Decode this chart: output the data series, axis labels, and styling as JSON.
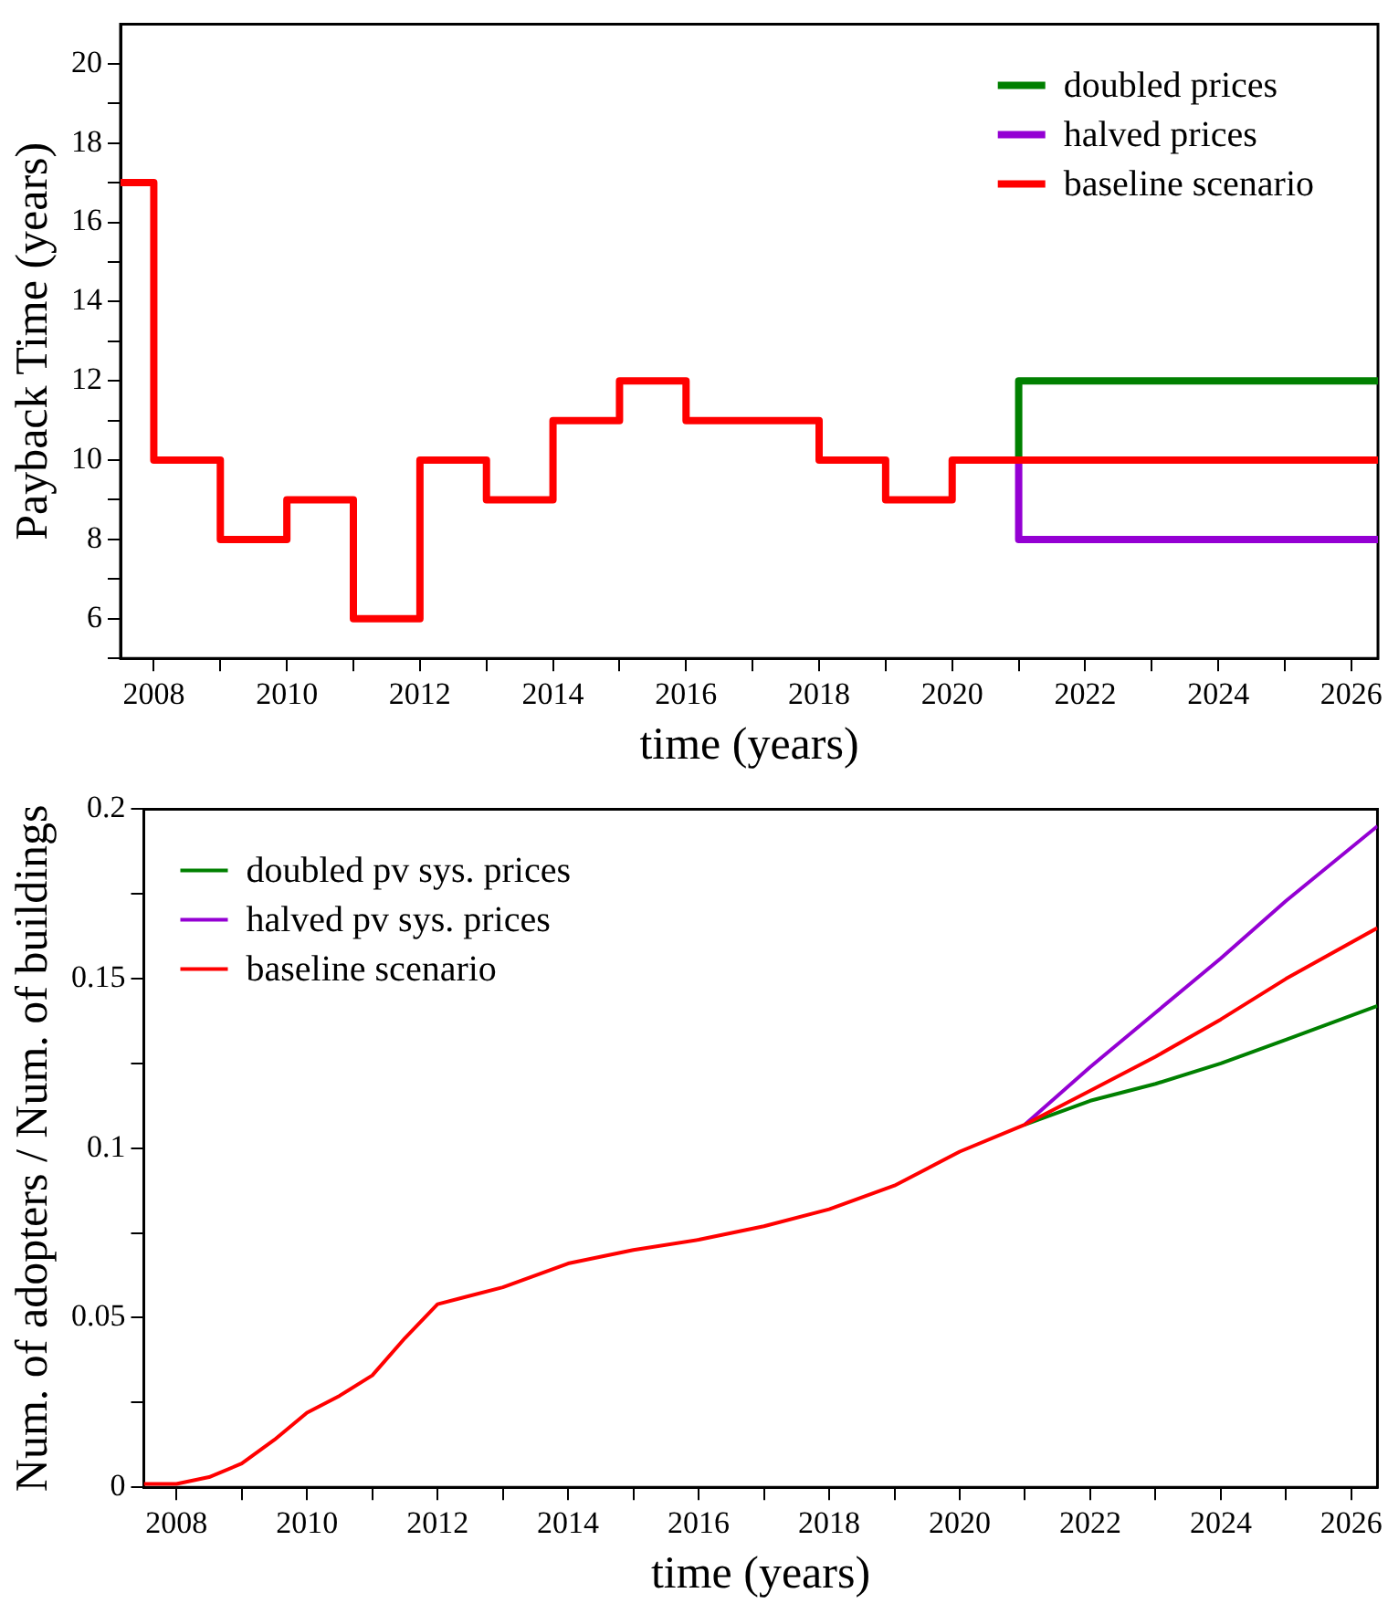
{
  "chart_data": [
    {
      "type": "step",
      "xlabel": "time (years)",
      "ylabel": "Payback Time (years)",
      "legend": "top right",
      "grid": false,
      "marker": "none",
      "xlim": [
        2007.5,
        2026.4
      ],
      "ylim": [
        5,
        21
      ],
      "xticks": [
        2008,
        {
          "value": 2009,
          "label": null
        },
        2010,
        {
          "value": 2011,
          "label": null
        },
        2012,
        {
          "value": 2013,
          "label": null
        },
        2014,
        {
          "value": 2015,
          "label": null
        },
        2016,
        {
          "value": 2017,
          "label": null
        },
        2018,
        {
          "value": 2019,
          "label": null
        },
        2020,
        {
          "value": 2021,
          "label": null
        },
        2022,
        {
          "value": 2023,
          "label": null
        },
        2024,
        {
          "value": 2025,
          "label": null
        },
        2026
      ],
      "yticks": [
        {
          "value": 5,
          "label": null
        },
        6,
        {
          "value": 7,
          "label": null
        },
        8,
        {
          "value": 9,
          "label": null
        },
        10,
        {
          "value": 11,
          "label": null
        },
        12,
        {
          "value": 13,
          "label": null
        },
        14,
        {
          "value": 15,
          "label": null
        },
        16,
        {
          "value": 17,
          "label": null
        },
        18,
        {
          "value": 19,
          "label": null
        },
        20
      ],
      "x": [
        2007.5,
        2008,
        2009,
        2010,
        2011,
        2012,
        2013,
        2014,
        2015,
        2016,
        2017,
        2018,
        2019,
        2020,
        2021,
        2026.4
      ],
      "series": [
        {
          "name": "doubled prices",
          "color": "#008000",
          "x": [
            2021,
            2021,
            2026.4
          ],
          "values": [
            10,
            12,
            12
          ]
        },
        {
          "name": "halved prices",
          "color": "#9400d3",
          "x": [
            2021,
            2021,
            2026.4
          ],
          "values": [
            10,
            8,
            8
          ]
        },
        {
          "name": "baseline scenario",
          "color": "#ff0000",
          "values": [
            17,
            10,
            8,
            9,
            6,
            10,
            9,
            11,
            12,
            11,
            11,
            10,
            9,
            10,
            10,
            10
          ]
        }
      ]
    },
    {
      "type": "line",
      "xlabel": "time (years)",
      "ylabel": "Num. of adopters / Num. of buildings",
      "legend": "top left",
      "grid": false,
      "marker": "none",
      "xlim": [
        2007.5,
        2026.4
      ],
      "ylim": [
        0,
        0.2
      ],
      "xticks": [
        2008,
        {
          "value": 2009,
          "label": null
        },
        2010,
        {
          "value": 2011,
          "label": null
        },
        2012,
        {
          "value": 2013,
          "label": null
        },
        2014,
        {
          "value": 2015,
          "label": null
        },
        2016,
        {
          "value": 2017,
          "label": null
        },
        2018,
        {
          "value": 2019,
          "label": null
        },
        2020,
        {
          "value": 2021,
          "label": null
        },
        2022,
        {
          "value": 2023,
          "label": null
        },
        2024,
        {
          "value": 2025,
          "label": null
        },
        2026
      ],
      "yticks": [
        0,
        {
          "value": 0.025,
          "label": null
        },
        0.05,
        {
          "value": 0.075,
          "label": null
        },
        0.1,
        {
          "value": 0.125,
          "label": null
        },
        0.15,
        {
          "value": 0.175,
          "label": null
        },
        0.2
      ],
      "x": [
        2007.5,
        2008,
        2008.5,
        2009,
        2009.5,
        2010,
        2010.5,
        2011,
        2011.5,
        2012,
        2013,
        2014,
        2015,
        2016,
        2017,
        2018,
        2019,
        2020,
        2021,
        2022,
        2023,
        2024,
        2025,
        2026.4
      ],
      "series": [
        {
          "name": "doubled pv sys. prices",
          "color": "#008000",
          "x": [
            2021,
            2022,
            2023,
            2024,
            2025,
            2026.4
          ],
          "values": [
            0.107,
            0.114,
            0.119,
            0.125,
            0.132,
            0.142
          ]
        },
        {
          "name": "halved pv sys. prices",
          "color": "#9400d3",
          "x": [
            2021,
            2022,
            2023,
            2024,
            2025,
            2026.4
          ],
          "values": [
            0.107,
            0.124,
            0.14,
            0.156,
            0.173,
            0.195
          ]
        },
        {
          "name": "baseline scenario",
          "color": "#ff0000",
          "values": [
            0.001,
            0.001,
            0.003,
            0.007,
            0.014,
            0.022,
            0.027,
            0.033,
            0.044,
            0.054,
            0.059,
            0.066,
            0.07,
            0.073,
            0.077,
            0.082,
            0.089,
            0.099,
            0.107,
            0.117,
            0.127,
            0.138,
            0.15,
            0.165
          ]
        }
      ]
    }
  ]
}
